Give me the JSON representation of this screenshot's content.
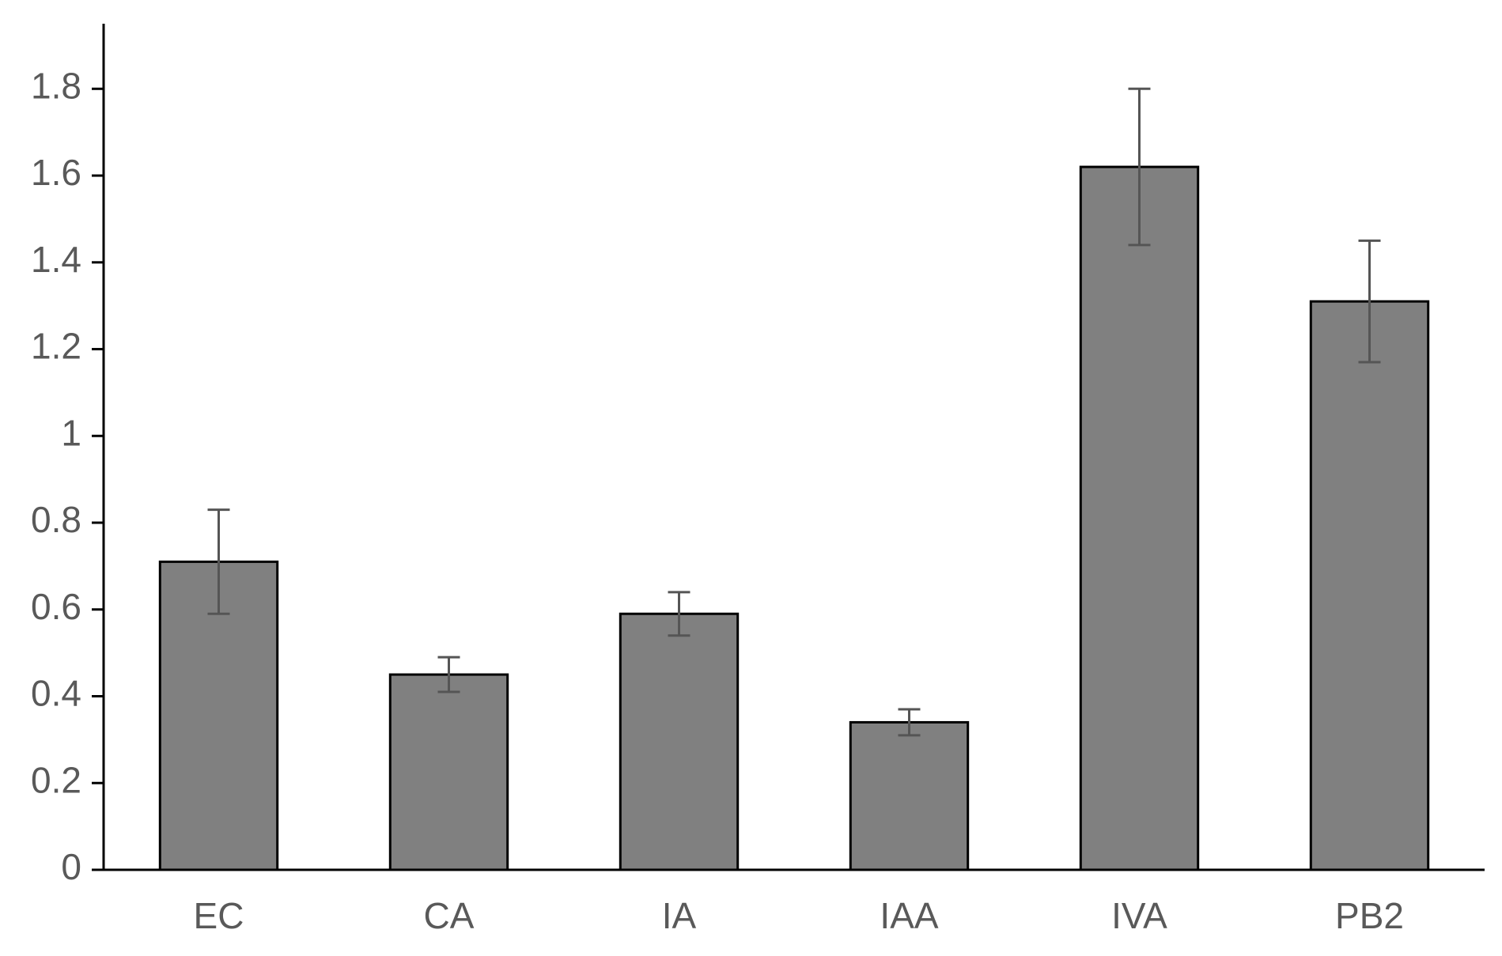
{
  "chart_data": {
    "type": "bar",
    "categories": [
      "EC",
      "CA",
      "IA",
      "IAA",
      "IVA",
      "PB2"
    ],
    "values": [
      0.71,
      0.45,
      0.59,
      0.34,
      1.62,
      1.31
    ],
    "errors": [
      0.12,
      0.04,
      0.05,
      0.03,
      0.18,
      0.14
    ],
    "color": "#808080",
    "ylim": [
      0,
      1.95
    ],
    "yticks": [
      0,
      0.2,
      0.4,
      0.6,
      0.8,
      1,
      1.2,
      1.4,
      1.6,
      1.8
    ],
    "grid": false
  }
}
